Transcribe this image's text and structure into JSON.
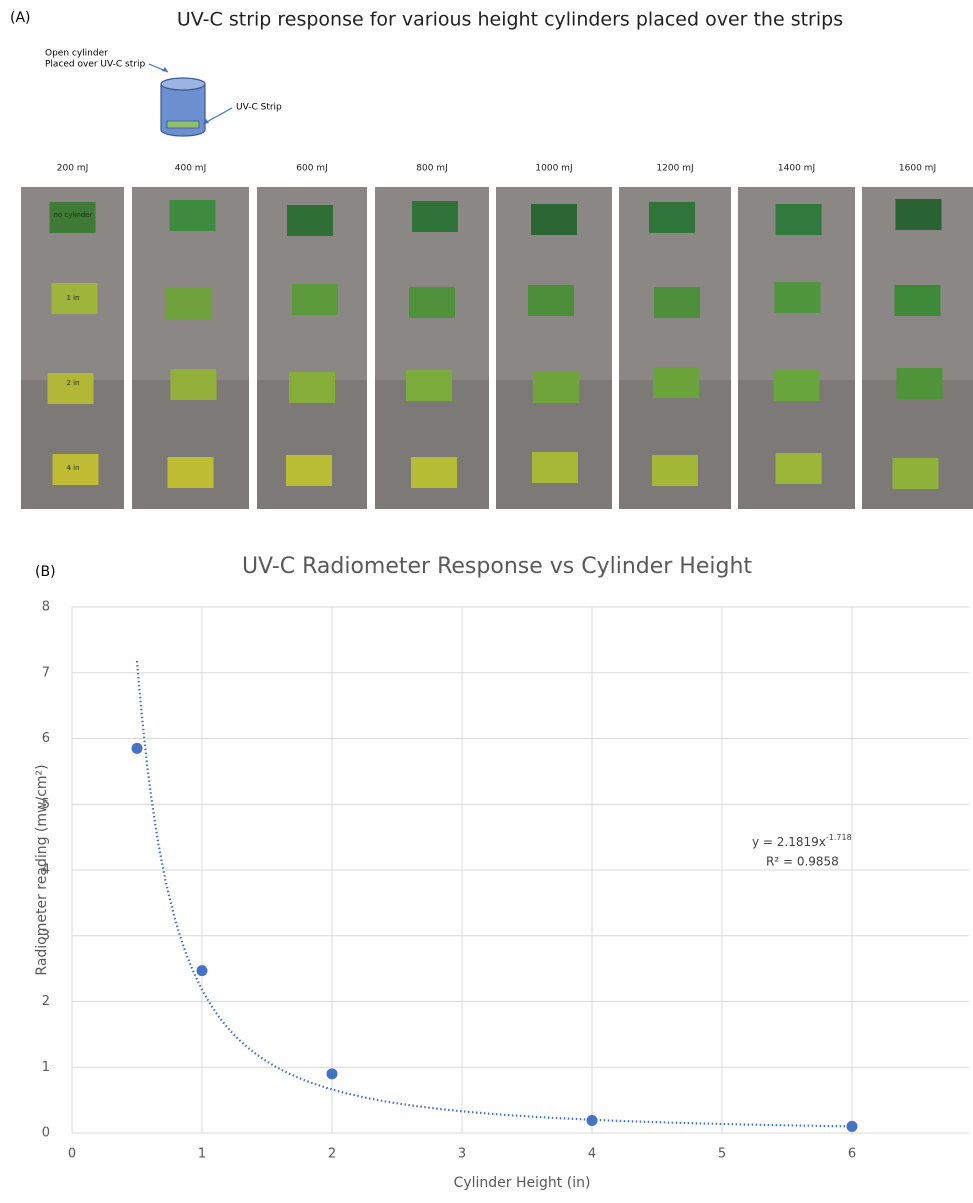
{
  "panel_a": {
    "label": "(A)",
    "title": "UV-C strip response for various height cylinders placed over the strips",
    "diagram_labels": [
      "Open cylinder",
      "Placed over UV-C strip",
      "UV-C Strip"
    ],
    "doses": [
      "200 mJ",
      "400 mJ",
      "600 mJ",
      "800 mJ",
      "1000 mJ",
      "1200 mJ",
      "1400 mJ",
      "1600 mJ"
    ],
    "strip_labels": [
      "no cylinder",
      "1 in",
      "2 in",
      "4 in"
    ]
  },
  "chart_data": {
    "type": "scatter",
    "panel_label": "(B)",
    "title": "UV-C Radiometer Response vs Cylinder Height",
    "x_label": "Cylinder Height (in)",
    "y_label": "Radiometer reading (mw/cm²)",
    "x": [
      0.5,
      1,
      2,
      4,
      6
    ],
    "series": [
      {
        "color": "#4472c4",
        "values": [
          5.85,
          2.47,
          0.9,
          0.19,
          0.1
        ]
      }
    ],
    "xlim": [
      0,
      6.9
    ],
    "ylim": [
      0,
      8
    ],
    "xticks": [
      0,
      1,
      2,
      3,
      4,
      5,
      6
    ],
    "yticks": [
      0,
      1,
      2,
      3,
      4,
      5,
      6,
      7,
      8
    ],
    "grid": true,
    "trendline": {
      "type": "power",
      "a": 2.1819,
      "b": -1.718,
      "equation": "y = 2.1819x",
      "exponent": "-1.718",
      "r2_label": "R² = 0.9858"
    }
  }
}
